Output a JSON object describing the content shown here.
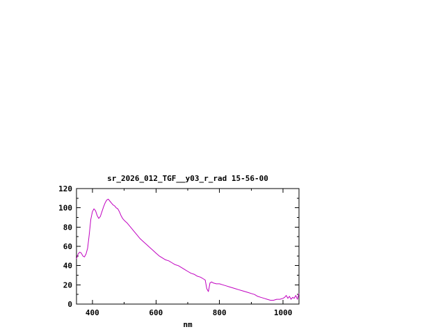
{
  "window": {
    "background": "#ffffff"
  },
  "chart": {
    "title": "sr_2026_012_TGF__y03_r_rad 15-56-00",
    "xlabel": "nm"
  },
  "colors": {
    "line": "#c000c0",
    "axis": "#000000",
    "text": "#000000",
    "background": "#ffffff"
  },
  "chart_data": {
    "type": "line",
    "title": "sr_2026_012_TGF__y03_r_rad 15-56-00",
    "xlabel": "nm",
    "ylabel": "",
    "xlim": [
      350,
      1050
    ],
    "ylim": [
      0,
      120
    ],
    "x_ticks_labeled": [
      400,
      600,
      800,
      1000
    ],
    "x_ticks_minor": [
      500,
      700,
      900
    ],
    "y_ticks_labeled": [
      0,
      20,
      40,
      60,
      80,
      100,
      120
    ],
    "y_ticks_minor": [
      10,
      30,
      50,
      70,
      90,
      110
    ],
    "grid": false,
    "legend": "none",
    "series": [
      {
        "name": "sr_2026_012_TGF__y03_r_rad",
        "color": "#c000c0",
        "x": [
          350,
          355,
          360,
          365,
          370,
          375,
          380,
          385,
          390,
          395,
          400,
          405,
          410,
          415,
          420,
          425,
          430,
          435,
          440,
          445,
          450,
          455,
          460,
          465,
          470,
          475,
          480,
          485,
          490,
          495,
          500,
          510,
          520,
          530,
          540,
          550,
          560,
          570,
          580,
          590,
          600,
          610,
          620,
          630,
          640,
          650,
          660,
          670,
          680,
          690,
          700,
          710,
          720,
          730,
          740,
          750,
          755,
          760,
          765,
          770,
          775,
          780,
          790,
          800,
          810,
          820,
          830,
          840,
          850,
          860,
          870,
          880,
          890,
          900,
          910,
          920,
          930,
          940,
          950,
          960,
          970,
          980,
          990,
          1000,
          1005,
          1010,
          1015,
          1020,
          1025,
          1030,
          1035,
          1040,
          1045,
          1050
        ],
        "y": [
          47,
          52,
          54,
          53,
          50,
          49,
          52,
          58,
          72,
          88,
          96,
          99,
          97,
          92,
          89,
          91,
          96,
          101,
          105,
          108,
          109,
          107,
          105,
          103,
          102,
          100,
          99,
          96,
          92,
          89,
          87,
          84,
          80,
          76,
          72,
          68,
          65,
          62,
          59,
          56,
          53,
          50,
          48,
          46,
          45,
          43,
          41,
          40,
          38,
          36,
          34,
          32,
          31,
          29,
          28,
          26,
          25,
          16,
          13,
          22,
          23,
          22,
          21,
          21,
          20,
          19,
          18,
          17,
          16,
          15,
          14,
          13,
          12,
          11,
          10,
          8,
          7,
          6,
          5,
          4,
          4,
          5,
          5,
          6,
          7,
          9,
          6,
          8,
          5,
          7,
          6,
          9,
          5,
          11
        ]
      }
    ]
  }
}
